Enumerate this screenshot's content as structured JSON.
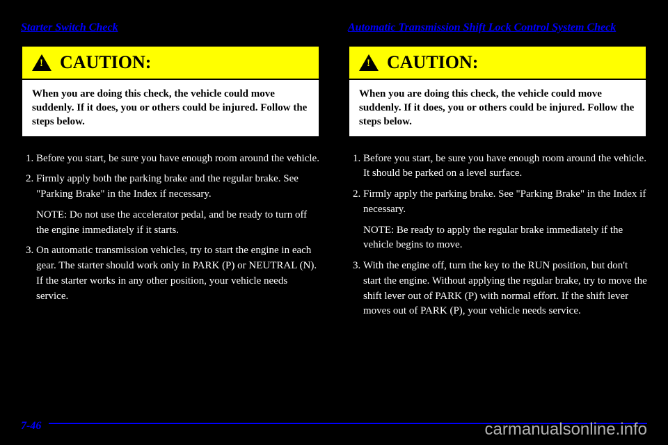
{
  "left": {
    "title": "Starter Switch Check",
    "caution_label": "CAUTION:",
    "caution_body": "When you are doing this check, the vehicle could move suddenly. If it does, you or others could be injured. Follow the steps below.",
    "steps": [
      "Before you start, be sure you have enough room around the vehicle.",
      "Firmly apply both the parking brake and the regular brake. See \"Parking Brake\" in the Index if necessary.",
      "NOTE: Do not use the accelerator pedal, and be ready to turn off the engine immediately if it starts.",
      "On automatic transmission vehicles, try to start the engine in each gear. The starter should work only in PARK (P) or NEUTRAL (N). If the starter works in any other position, your vehicle needs service."
    ]
  },
  "right": {
    "title": "Automatic Transmission Shift Lock Control System Check",
    "caution_label": "CAUTION:",
    "caution_body": "When you are doing this check, the vehicle could move suddenly. If it does, you or others could be injured. Follow the steps below.",
    "steps": [
      "Before you start, be sure you have enough room around the vehicle. It should be parked on a level surface.",
      "Firmly apply the parking brake. See \"Parking Brake\" in the Index if necessary.",
      "NOTE: Be ready to apply the regular brake immediately if the vehicle begins to move.",
      "With the engine off, turn the key to the RUN position, but don't start the engine. Without applying the regular brake, try to move the shift lever out of PARK (P) with normal effort. If the shift lever moves out of PARK (P), your vehicle needs service."
    ]
  },
  "page_number": "7-46",
  "watermark": "carmanualsonline.info"
}
